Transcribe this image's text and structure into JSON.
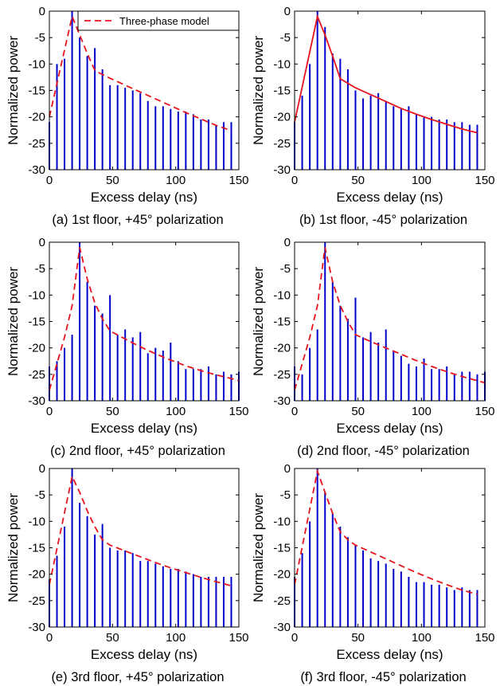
{
  "legend_label": "Three-phase model",
  "colors": {
    "bars": "#0000cc",
    "model": "#e8141c",
    "axes": "#000000"
  },
  "chart_data": [
    {
      "type": "bar",
      "caption": "(a) 1st floor, +45° polarization",
      "xlabel": "Excess delay (ns)",
      "ylabel": "Normalized power",
      "xlim": [
        0,
        150
      ],
      "ylim": [
        -30,
        0
      ],
      "xticks": [
        "0",
        "50",
        "100",
        "150"
      ],
      "yticks": [
        "0",
        "-5",
        "-10",
        "-15",
        "-20",
        "-25",
        "-30"
      ],
      "legend": "top-right",
      "model_style": "dashed",
      "bars": {
        "x": [
          0,
          6,
          12,
          18,
          24,
          30,
          36,
          42,
          48,
          54,
          60,
          66,
          72,
          78,
          84,
          90,
          96,
          102,
          108,
          114,
          120,
          126,
          132,
          138,
          144
        ],
        "y": [
          -21,
          -10,
          -9,
          0,
          -5,
          -8.5,
          -7,
          -11,
          -14,
          -14,
          -14.5,
          -15,
          -15.5,
          -17,
          -18,
          -18,
          -18.5,
          -19,
          -19,
          -19.5,
          -20.5,
          -20.5,
          -21.5,
          -21,
          -21
        ]
      },
      "model": {
        "x": [
          0,
          18,
          24,
          30,
          36,
          42,
          48,
          60,
          72,
          84,
          96,
          108,
          120,
          132,
          144
        ],
        "y": [
          -20,
          -1,
          -4.5,
          -8,
          -11.2,
          -12,
          -12.7,
          -14,
          -15.3,
          -16.6,
          -17.9,
          -19.2,
          -20.4,
          -21.6,
          -22.6
        ]
      }
    },
    {
      "type": "bar",
      "caption": "(b) 1st floor, -45° polarization",
      "xlabel": "Excess delay (ns)",
      "ylabel": "Normalized power",
      "xlim": [
        0,
        150
      ],
      "ylim": [
        -30,
        0
      ],
      "xticks": [
        "0",
        "50",
        "100",
        "150"
      ],
      "yticks": [
        "0",
        "-5",
        "-10",
        "-15",
        "-20",
        "-25",
        "-30"
      ],
      "model_style": "solid",
      "bars": {
        "x": [
          0,
          6,
          12,
          18,
          24,
          30,
          36,
          42,
          48,
          54,
          60,
          66,
          72,
          78,
          84,
          90,
          96,
          102,
          108,
          114,
          120,
          126,
          132,
          138,
          144
        ],
        "y": [
          -21,
          -16,
          -10,
          0,
          -3,
          -8,
          -9,
          -11,
          -15,
          -16.5,
          -16,
          -15.5,
          -17,
          -18,
          -18.5,
          -18,
          -19.5,
          -20,
          -20,
          -20.5,
          -20.5,
          -21,
          -21,
          -21.5,
          -21.5
        ]
      },
      "model": {
        "x": [
          0,
          18,
          24,
          30,
          36,
          48,
          60,
          72,
          84,
          96,
          108,
          120,
          132,
          144
        ],
        "y": [
          -21,
          -1,
          -4.5,
          -8.5,
          -12.8,
          -14.5,
          -15.8,
          -17.1,
          -18.4,
          -19.5,
          -20.5,
          -21.4,
          -22.3,
          -23
        ]
      }
    },
    {
      "type": "bar",
      "caption": "(c) 2nd floor, +45° polarization",
      "xlabel": "Excess delay (ns)",
      "ylabel": "Normalized power",
      "xlim": [
        0,
        150
      ],
      "ylim": [
        -30,
        0
      ],
      "xticks": [
        "0",
        "50",
        "100",
        "150"
      ],
      "yticks": [
        "0",
        "-5",
        "-10",
        "-15",
        "-20",
        "-25",
        "-30"
      ],
      "model_style": "dashed",
      "bars": {
        "x": [
          0,
          6,
          12,
          18,
          24,
          30,
          36,
          42,
          48,
          54,
          60,
          66,
          72,
          78,
          84,
          90,
          96,
          102,
          108,
          114,
          120,
          126,
          132,
          138,
          144,
          150
        ],
        "y": [
          -23.5,
          -22.5,
          -20,
          -17.5,
          0,
          -7.5,
          -12,
          -13.5,
          -10,
          -17.5,
          -16.5,
          -18,
          -17,
          -21,
          -20,
          -20.5,
          -19,
          -22.5,
          -24,
          -24,
          -24,
          -23.5,
          -25,
          -24.5,
          -25,
          -24.5
        ]
      },
      "model": {
        "x": [
          0,
          12,
          18,
          24,
          30,
          36,
          42,
          48,
          60,
          72,
          84,
          96,
          108,
          120,
          132,
          144,
          150
        ],
        "y": [
          -28,
          -18,
          -12,
          -1,
          -7,
          -11.5,
          -14.5,
          -16.8,
          -18.3,
          -19.8,
          -21.1,
          -22.3,
          -23.4,
          -24.3,
          -25.1,
          -25.8,
          -26.2
        ]
      }
    },
    {
      "type": "bar",
      "caption": "(d) 2nd floor, -45° polarization",
      "xlabel": "Excess delay (ns)",
      "ylabel": "Normalized power",
      "xlim": [
        0,
        150
      ],
      "ylim": [
        -30,
        0
      ],
      "xticks": [
        "0",
        "50",
        "100",
        "150"
      ],
      "yticks": [
        "0",
        "-5",
        "-10",
        "-15",
        "-20",
        "-25",
        "-30"
      ],
      "model_style": "dashed",
      "bars": {
        "x": [
          0,
          6,
          12,
          18,
          24,
          30,
          36,
          42,
          48,
          54,
          60,
          66,
          72,
          78,
          84,
          90,
          96,
          102,
          108,
          114,
          120,
          126,
          132,
          138,
          144,
          150
        ],
        "y": [
          -23.5,
          -25,
          -20,
          -16.5,
          0,
          -7.5,
          -12,
          -14.5,
          -10.5,
          -18,
          -17,
          -19,
          -16.5,
          -20.5,
          -21.5,
          -23,
          -23.5,
          -22,
          -24,
          -24,
          -23.5,
          -25,
          -24.5,
          -24.5,
          -25,
          -24.5
        ]
      },
      "model": {
        "x": [
          0,
          12,
          18,
          24,
          30,
          36,
          42,
          48,
          60,
          72,
          84,
          96,
          108,
          120,
          132,
          144,
          150
        ],
        "y": [
          -28,
          -18,
          -12,
          -1,
          -7.5,
          -12,
          -15,
          -17.5,
          -18.8,
          -20,
          -21.2,
          -22.4,
          -23.5,
          -24.5,
          -25.4,
          -26.2,
          -26.6
        ]
      }
    },
    {
      "type": "bar",
      "caption": "(e) 3rd floor, +45° polarization",
      "xlabel": "Excess delay (ns)",
      "ylabel": "Normalized power",
      "xlim": [
        0,
        150
      ],
      "ylim": [
        -30,
        0
      ],
      "xticks": [
        "0",
        "50",
        "100",
        "150"
      ],
      "yticks": [
        "0",
        "-5",
        "-10",
        "-15",
        "-20",
        "-25",
        "-30"
      ],
      "model_style": "dashed",
      "bars": {
        "x": [
          0,
          6,
          12,
          18,
          24,
          30,
          36,
          42,
          48,
          54,
          60,
          66,
          72,
          78,
          84,
          90,
          96,
          102,
          108,
          114,
          120,
          126,
          132,
          138,
          144
        ],
        "y": [
          -21,
          -16.5,
          -11,
          0,
          -6.5,
          -9,
          -12.5,
          -10.5,
          -15,
          -15.5,
          -15.5,
          -16,
          -17.5,
          -17.5,
          -18,
          -18.5,
          -19,
          -19,
          -19.5,
          -20,
          -20.5,
          -20.5,
          -20.5,
          -20.5,
          -20.5
        ]
      },
      "model": {
        "x": [
          0,
          18,
          24,
          30,
          36,
          42,
          48,
          60,
          72,
          84,
          96,
          108,
          120,
          132,
          144
        ],
        "y": [
          -22,
          -1.5,
          -4.5,
          -8,
          -11,
          -13.5,
          -14.5,
          -15.6,
          -16.7,
          -17.8,
          -18.8,
          -19.7,
          -20.6,
          -21.4,
          -22.2
        ]
      }
    },
    {
      "type": "bar",
      "caption": "(f) 3rd floor, -45° polarization",
      "xlabel": "Excess delay (ns)",
      "ylabel": "Normalized power",
      "xlim": [
        0,
        150
      ],
      "ylim": [
        -30,
        0
      ],
      "xticks": [
        "0",
        "50",
        "100",
        "150"
      ],
      "yticks": [
        "0",
        "-5",
        "-10",
        "-15",
        "-20",
        "-25",
        "-30"
      ],
      "model_style": "dashed",
      "bars": {
        "x": [
          0,
          6,
          12,
          18,
          24,
          30,
          36,
          42,
          48,
          54,
          60,
          66,
          72,
          78,
          84,
          90,
          96,
          102,
          108,
          114,
          120,
          126,
          132,
          138,
          144
        ],
        "y": [
          -20.5,
          -16,
          -10,
          0,
          -4.5,
          -8.5,
          -11,
          -13,
          -14.5,
          -15.5,
          -17,
          -17.5,
          -18,
          -19,
          -19.5,
          -20.5,
          -21.5,
          -21.5,
          -22,
          -22,
          -22.5,
          -23,
          -22.5,
          -23,
          -23
        ]
      },
      "model": {
        "x": [
          0,
          18,
          24,
          30,
          36,
          42,
          48,
          60,
          72,
          84,
          96,
          108,
          120,
          132,
          144
        ],
        "y": [
          -22,
          -0.5,
          -4.5,
          -8.5,
          -12,
          -13.5,
          -14.5,
          -15.8,
          -17.1,
          -18.4,
          -19.7,
          -20.9,
          -22,
          -23,
          -23.8
        ]
      }
    }
  ]
}
